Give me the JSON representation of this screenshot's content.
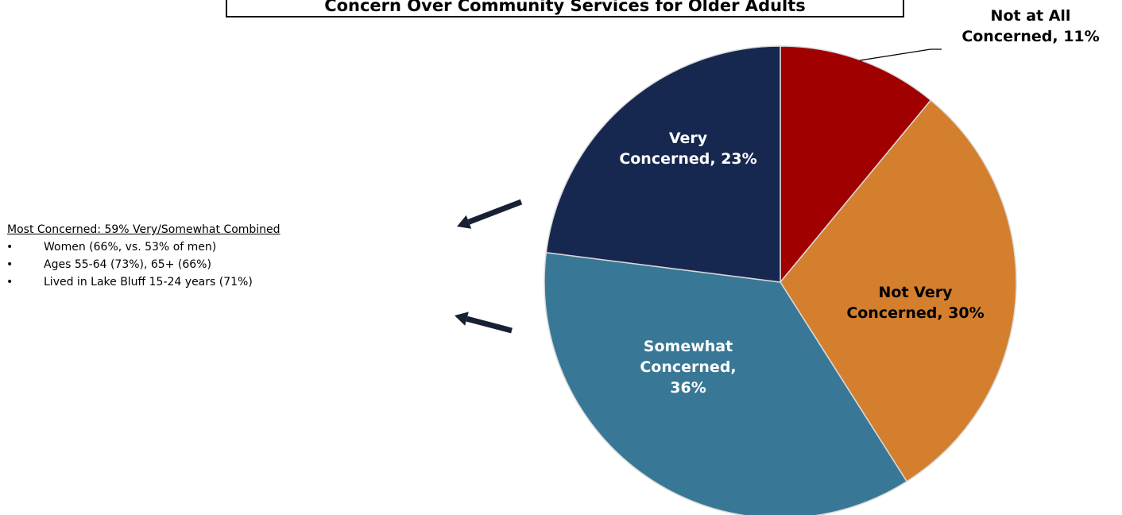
{
  "chart_data": {
    "type": "pie",
    "title": "Concern Over Community Services for Older Adults",
    "slices": [
      {
        "label_lines": [
          "Not at All",
          "Concerned, 11%"
        ],
        "value": 11,
        "color": "#a00000",
        "label_color": "#000000"
      },
      {
        "label_lines": [
          "Not Very",
          "Concerned, 30%"
        ],
        "value": 30,
        "color": "#d47f2e",
        "label_color": "#000000"
      },
      {
        "label_lines": [
          "Somewhat",
          "Concerned,",
          "36%"
        ],
        "value": 36,
        "color": "#387896",
        "label_color": "#ffffff"
      },
      {
        "label_lines": [
          "Very",
          "Concerned, 23%"
        ],
        "value": 23,
        "color": "#172850",
        "label_color": "#ffffff"
      }
    ],
    "start_angle_deg": 0,
    "direction": "clockwise",
    "edge_color": "#d9d9d9"
  },
  "note": {
    "heading": "Most Concerned:  59% Very/Somewhat Combined",
    "bullets": [
      "Women (66%, vs. 53% of men)",
      "Ages 55-64 (73%), 65+ (66%)",
      "Lived in Lake Bluff 15-24 years (71%)"
    ]
  },
  "arrow_color": "#172035"
}
